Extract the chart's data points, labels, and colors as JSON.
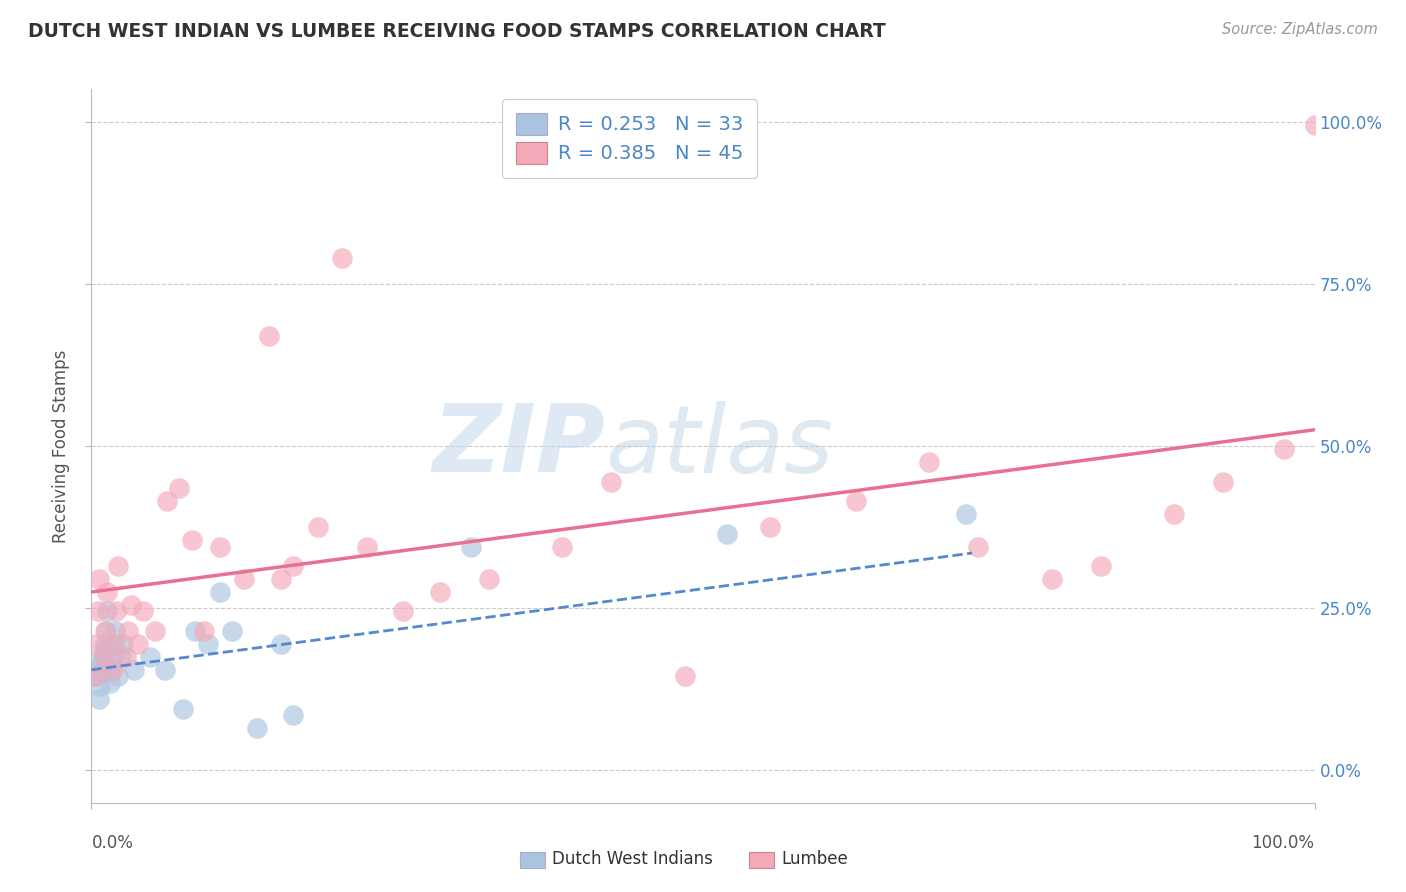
{
  "title": "DUTCH WEST INDIAN VS LUMBEE RECEIVING FOOD STAMPS CORRELATION CHART",
  "source": "Source: ZipAtlas.com",
  "ylabel": "Receiving Food Stamps",
  "xlim": [
    0.0,
    1.0
  ],
  "ylim": [
    -0.05,
    1.05
  ],
  "ytick_positions": [
    0.0,
    0.25,
    0.5,
    0.75,
    1.0
  ],
  "ytick_labels": [
    "0.0%",
    "25.0%",
    "50.0%",
    "75.0%",
    "100.0%"
  ],
  "xtick_positions": [
    0.0,
    1.0
  ],
  "xtick_labels": [
    "0.0%",
    "100.0%"
  ],
  "watermark_zip": "ZIP",
  "watermark_atlas": "atlas",
  "legend_r1": "R = 0.253",
  "legend_n1": "N = 33",
  "legend_r2": "R = 0.385",
  "legend_n2": "N = 45",
  "color_blue_fill": "#aac4e0",
  "color_pink_fill": "#f4a8b8",
  "color_blue_line": "#5588cc",
  "color_pink_line": "#e87090",
  "color_text_blue": "#4a86c8",
  "color_grid": "#cccccc",
  "dutch_x": [
    0.003,
    0.003,
    0.006,
    0.007,
    0.008,
    0.009,
    0.01,
    0.01,
    0.011,
    0.012,
    0.013,
    0.015,
    0.016,
    0.017,
    0.018,
    0.019,
    0.022,
    0.024,
    0.026,
    0.035,
    0.048,
    0.06,
    0.075,
    0.085,
    0.095,
    0.105,
    0.115,
    0.135,
    0.155,
    0.165,
    0.31,
    0.52,
    0.715
  ],
  "dutch_y": [
    0.145,
    0.165,
    0.11,
    0.13,
    0.15,
    0.165,
    0.175,
    0.185,
    0.195,
    0.215,
    0.245,
    0.135,
    0.155,
    0.17,
    0.195,
    0.215,
    0.145,
    0.175,
    0.195,
    0.155,
    0.175,
    0.155,
    0.095,
    0.215,
    0.195,
    0.275,
    0.215,
    0.065,
    0.195,
    0.085,
    0.345,
    0.365,
    0.395
  ],
  "lumbee_x": [
    0.003,
    0.004,
    0.005,
    0.006,
    0.01,
    0.011,
    0.013,
    0.018,
    0.019,
    0.02,
    0.022,
    0.028,
    0.03,
    0.032,
    0.038,
    0.042,
    0.052,
    0.062,
    0.072,
    0.082,
    0.092,
    0.105,
    0.125,
    0.145,
    0.155,
    0.165,
    0.185,
    0.205,
    0.225,
    0.255,
    0.285,
    0.325,
    0.385,
    0.425,
    0.485,
    0.555,
    0.625,
    0.685,
    0.725,
    0.785,
    0.825,
    0.885,
    0.925,
    0.975,
    1.0
  ],
  "lumbee_y": [
    0.145,
    0.195,
    0.245,
    0.295,
    0.175,
    0.215,
    0.275,
    0.155,
    0.195,
    0.245,
    0.315,
    0.175,
    0.215,
    0.255,
    0.195,
    0.245,
    0.215,
    0.415,
    0.435,
    0.355,
    0.215,
    0.345,
    0.295,
    0.67,
    0.295,
    0.315,
    0.375,
    0.79,
    0.345,
    0.245,
    0.275,
    0.295,
    0.345,
    0.445,
    0.145,
    0.375,
    0.415,
    0.475,
    0.345,
    0.295,
    0.315,
    0.395,
    0.445,
    0.495,
    0.995
  ],
  "dutch_line_x": [
    0.0,
    0.72
  ],
  "dutch_line_y": [
    0.155,
    0.335
  ],
  "lumbee_line_x": [
    0.0,
    1.0
  ],
  "lumbee_line_y": [
    0.275,
    0.525
  ],
  "label_dutch": "Dutch West Indians",
  "label_lumbee": "Lumbee",
  "background_color": "#ffffff"
}
